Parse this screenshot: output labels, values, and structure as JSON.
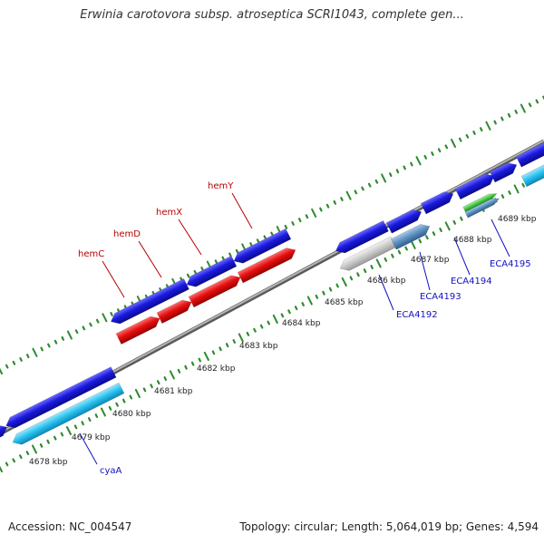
{
  "title": "Erwinia carotovora subsp. atroseptica SCRI1043, complete gen...",
  "footer": {
    "accession": "Accession: NC_004547",
    "summary": "Topology: circular; Length: 5,064,019 bp; Genes: 4,594"
  },
  "colors": {
    "backbone": "#8c8c8c",
    "tick": "#2e8b2e",
    "gene_blue": "#1a1adf",
    "gene_red": "#e60f0f",
    "gene_cyan": "#2ec4f0",
    "gene_gray": "#c8c8c8",
    "gene_steel": "#5b8fc0",
    "gene_green": "#3ec43e",
    "label_red": "#b80000",
    "label_blue": "#1010c0",
    "kbp_text": "#222222"
  },
  "kbp_labels": [
    "4678 kbp",
    "4679 kbp",
    "4680 kbp",
    "4681 kbp",
    "4682 kbp",
    "4683 kbp",
    "4684 kbp",
    "4685 kbp",
    "4686 kbp",
    "4687 kbp",
    "4688 kbp",
    "4689 kbp"
  ],
  "gene_labels": [
    {
      "text": "cyaA",
      "color": "blue"
    },
    {
      "text": "hemC",
      "color": "red"
    },
    {
      "text": "hemD",
      "color": "red"
    },
    {
      "text": "hemX",
      "color": "red"
    },
    {
      "text": "hemY",
      "color": "red"
    },
    {
      "text": "ECA4192",
      "color": "blue"
    },
    {
      "text": "ECA4193",
      "color": "blue"
    },
    {
      "text": "ECA4194",
      "color": "blue"
    },
    {
      "text": "ECA4195",
      "color": "blue"
    }
  ]
}
